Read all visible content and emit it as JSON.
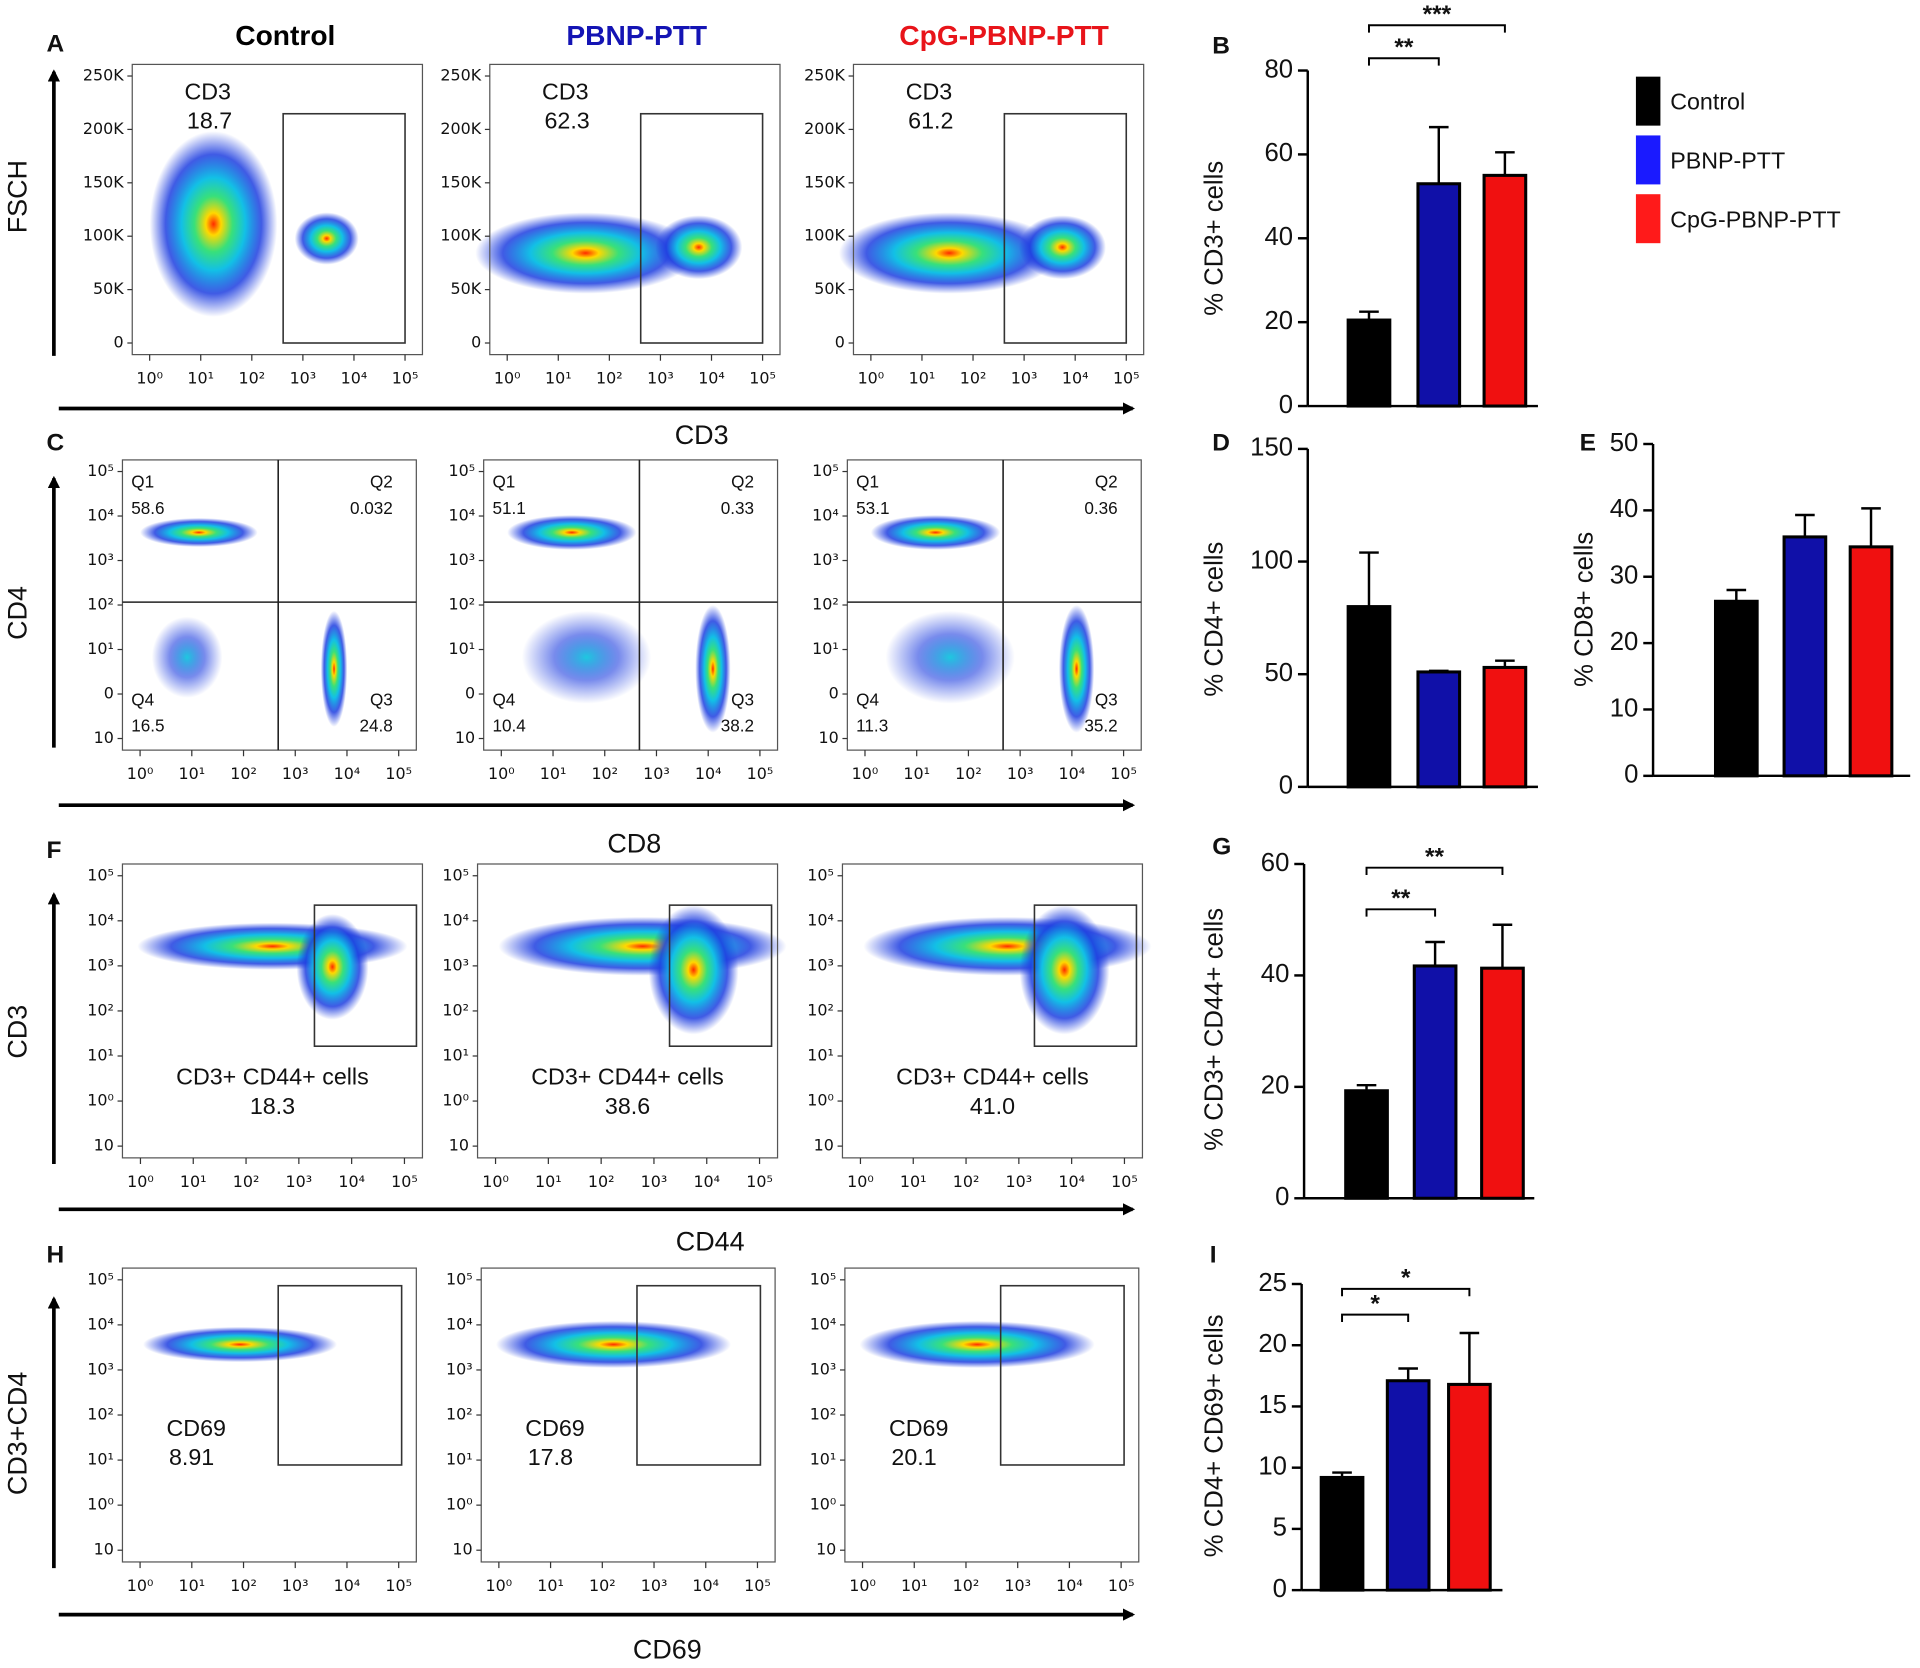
{
  "figure": {
    "column_headers": [
      {
        "text": "Control",
        "color": "#000000"
      },
      {
        "text": "PBNP-PTT",
        "color": "#1414b4"
      },
      {
        "text": "CpG-PBNP-PTT",
        "color": "#e8141a"
      }
    ],
    "flow_rows": [
      {
        "panel": "A",
        "kind": "gate",
        "y_axis_label": "FSCH",
        "x_axis_label": "CD3",
        "x_ticks": [
          "10⁰",
          "10¹",
          "10²",
          "10³",
          "10⁴",
          "10⁵"
        ],
        "y_ticks": [
          "250K",
          "200K",
          "150K",
          "100K",
          "50K",
          "0"
        ],
        "plots": [
          {
            "label": "CD3",
            "value": "18.7"
          },
          {
            "label": "CD3",
            "value": "62.3"
          },
          {
            "label": "CD3",
            "value": "61.2"
          }
        ]
      },
      {
        "panel": "C",
        "kind": "quadrant",
        "y_axis_label": "CD4",
        "x_axis_label": "CD8",
        "x_ticks": [
          "10⁰",
          "10¹",
          "10²",
          "10³",
          "10⁴",
          "10⁵"
        ],
        "y_ticks": [
          "10⁵",
          "10⁴",
          "10³",
          "10²",
          "10¹",
          "0",
          "10"
        ],
        "plots": [
          {
            "quadrants": [
              {
                "label": "Q1",
                "value": "58.6"
              },
              {
                "label": "Q2",
                "value": "0.032"
              },
              {
                "label": "Q3",
                "value": "24.8"
              },
              {
                "label": "Q4",
                "value": "16.5"
              }
            ]
          },
          {
            "quadrants": [
              {
                "label": "Q1",
                "value": "51.1"
              },
              {
                "label": "Q2",
                "value": "0.33"
              },
              {
                "label": "Q3",
                "value": "38.2"
              },
              {
                "label": "Q4",
                "value": "10.4"
              }
            ]
          },
          {
            "quadrants": [
              {
                "label": "Q1",
                "value": "53.1"
              },
              {
                "label": "Q2",
                "value": "0.36"
              },
              {
                "label": "Q3",
                "value": "35.2"
              },
              {
                "label": "Q4",
                "value": "11.3"
              }
            ]
          }
        ]
      },
      {
        "panel": "F",
        "kind": "gate",
        "y_axis_label": "CD3",
        "x_axis_label": "CD44",
        "x_ticks": [
          "10⁰",
          "10¹",
          "10²",
          "10³",
          "10⁴",
          "10⁵"
        ],
        "y_ticks": [
          "10⁵",
          "10⁴",
          "10³",
          "10²",
          "10¹",
          "10⁰",
          "10"
        ],
        "plots": [
          {
            "label": "CD3+ CD44+ cells",
            "value": "18.3"
          },
          {
            "label": "CD3+ CD44+ cells",
            "value": "38.6"
          },
          {
            "label": "CD3+ CD44+ cells",
            "value": "41.0"
          }
        ]
      },
      {
        "panel": "H",
        "kind": "gate",
        "y_axis_label": "CD3+CD4",
        "x_axis_label": "CD69",
        "x_ticks": [
          "10⁰",
          "10¹",
          "10²",
          "10³",
          "10⁴",
          "10⁵"
        ],
        "y_ticks": [
          "10⁵",
          "10⁴",
          "10³",
          "10²",
          "10¹",
          "10⁰",
          "10"
        ],
        "plots": [
          {
            "label": "CD69",
            "value": "8.91"
          },
          {
            "label": "CD69",
            "value": "17.8"
          },
          {
            "label": "CD69",
            "value": "20.1"
          }
        ]
      }
    ]
  },
  "chart_data": [
    {
      "type": "bar",
      "panel": "B",
      "y_label": "% CD3+ cells",
      "values": [
        20.5,
        53,
        55
      ],
      "errors": [
        2,
        13.5,
        5.5
      ],
      "colors": [
        "#000000",
        "#1010a8",
        "#f01010"
      ],
      "ylim": [
        0,
        80
      ],
      "yticks": [
        0,
        20,
        40,
        60,
        80
      ],
      "significance": [
        {
          "between": [
            0,
            1
          ],
          "label": "**"
        },
        {
          "between": [
            0,
            2
          ],
          "label": "***"
        }
      ],
      "legend": [
        {
          "name": "Control",
          "color": "#000000"
        },
        {
          "name": "PBNP-PTT",
          "color": "#1a1aff"
        },
        {
          "name": "CpG-PBNP-PTT",
          "color": "#ff1a1a"
        }
      ]
    },
    {
      "type": "bar",
      "panel": "D",
      "y_label": "% CD4+ cells",
      "values": [
        80,
        51,
        53
      ],
      "errors": [
        24,
        0.5,
        3
      ],
      "colors": [
        "#000000",
        "#1010a8",
        "#f01010"
      ],
      "ylim": [
        0,
        150
      ],
      "yticks": [
        0,
        50,
        100,
        150
      ]
    },
    {
      "type": "bar",
      "panel": "E",
      "y_label": "% CD8+ cells",
      "values": [
        26.3,
        36,
        34.5
      ],
      "errors": [
        1.7,
        3.3,
        5.8
      ],
      "colors": [
        "#000000",
        "#1010a8",
        "#f01010"
      ],
      "ylim": [
        0,
        50
      ],
      "yticks": [
        0,
        10,
        20,
        30,
        40,
        50
      ]
    },
    {
      "type": "bar",
      "panel": "G",
      "y_label": "% CD3+ CD44+ cells",
      "values": [
        19.3,
        41.7,
        41.3
      ],
      "errors": [
        1,
        4.3,
        7.8
      ],
      "colors": [
        "#000000",
        "#1010a8",
        "#f01010"
      ],
      "ylim": [
        0,
        60
      ],
      "yticks": [
        0,
        20,
        40,
        60
      ],
      "significance": [
        {
          "between": [
            0,
            1
          ],
          "label": "**"
        },
        {
          "between": [
            0,
            2
          ],
          "label": "**"
        }
      ]
    },
    {
      "type": "bar",
      "panel": "I",
      "y_label": "% CD4+ CD69+ cells",
      "values": [
        9.2,
        17.1,
        16.8
      ],
      "errors": [
        0.4,
        1,
        4.2
      ],
      "colors": [
        "#000000",
        "#1010a8",
        "#f01010"
      ],
      "ylim": [
        0,
        25
      ],
      "yticks": [
        0,
        5,
        10,
        15,
        20,
        25
      ],
      "significance": [
        {
          "between": [
            0,
            1
          ],
          "label": "*"
        },
        {
          "between": [
            0,
            2
          ],
          "label": "*"
        }
      ]
    }
  ]
}
